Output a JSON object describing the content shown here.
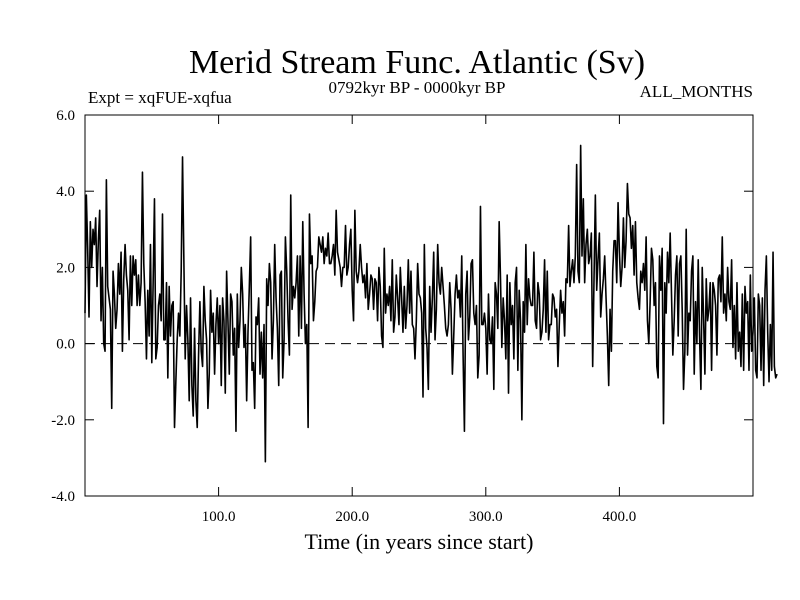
{
  "chart_data": {
    "type": "line",
    "title": "Merid Stream Func. Atlantic (Sv)",
    "subtitle_left": "Expt = xqFUE-xqfua",
    "subtitle_center": "0792kyr BP - 0000kyr BP",
    "subtitle_right": "ALL_MONTHS",
    "xlabel": "Time (in years since start)",
    "ylabel": "",
    "xlim": [
      0,
      500
    ],
    "ylim": [
      -4.0,
      6.0
    ],
    "x_ticks": [
      100,
      200,
      300,
      400
    ],
    "x_tick_labels": [
      "100.0",
      "200.0",
      "300.0",
      "400.0"
    ],
    "y_ticks": [
      -4,
      -2,
      0,
      2,
      4,
      6
    ],
    "y_tick_labels": [
      "-4.0",
      "-2.0",
      "0.0",
      "2.0",
      "4.0",
      "6.0"
    ],
    "reference_line": {
      "y": 0.0,
      "style": "dashed"
    },
    "series": [
      {
        "name": "Merid Stream Func. Atlantic",
        "x_start": 0,
        "x_step": 1,
        "values": [
          0.8,
          3.9,
          2.5,
          0.7,
          3.2,
          2.0,
          3.0,
          2.6,
          3.3,
          1.5,
          2.7,
          3.5,
          0.6,
          2.0,
          0.0,
          -0.2,
          4.3,
          1.5,
          1.2,
          0.9,
          -1.7,
          1.9,
          1.3,
          0.4,
          0.9,
          2.1,
          1.3,
          2.4,
          -0.2,
          1.7,
          2.6,
          1.8,
          1.4,
          0.1,
          2.3,
          1.0,
          2.3,
          1.8,
          2.2,
          1.0,
          1.8,
          1.0,
          1.6,
          4.5,
          2.1,
          1.1,
          -0.4,
          1.4,
          0.2,
          2.6,
          -0.5,
          1.6,
          3.8,
          -0.4,
          -0.1,
          1.0,
          1.3,
          0.6,
          3.4,
          0.1,
          0.1,
          1.6,
          -0.9,
          1.5,
          0.2,
          1.0,
          1.1,
          -2.2,
          -1.0,
          0.1,
          0.8,
          0.2,
          1.9,
          4.9,
          2.2,
          -0.4,
          1.0,
          0.1,
          -1.5,
          1.2,
          -1.1,
          -1.9,
          0.4,
          -1.5,
          -2.2,
          -0.3,
          1.1,
          -0.2,
          -0.6,
          1.5,
          0.6,
          0.1,
          -1.7,
          -0.8,
          1.4,
          0.3,
          0.8,
          -0.8,
          0.5,
          1.2,
          0.0,
          1.0,
          -1.1,
          1.2,
          0.6,
          -1.3,
          1.9,
          0.6,
          -0.8,
          1.3,
          1.1,
          -0.3,
          0.4,
          -2.3,
          1.3,
          -0.1,
          0.6,
          2.0,
          1.3,
          -0.1,
          0.5,
          -1.5,
          0.3,
          1.5,
          2.8,
          -0.7,
          -0.5,
          -1.7,
          0.7,
          0.5,
          1.2,
          -0.8,
          0.3,
          -0.9,
          0.5,
          -3.1,
          1.7,
          1.0,
          2.1,
          1.6,
          -0.4,
          0.6,
          2.6,
          1.2,
          0.4,
          -1.1,
          1.8,
          1.9,
          -0.9,
          0.1,
          2.8,
          1.9,
          0.6,
          -0.3,
          3.9,
          0.9,
          1.5,
          1.2,
          1.6,
          2.3,
          0.2,
          2.3,
          0.4,
          3.2,
          1.3,
          0.0,
          0.5,
          -2.2,
          3.4,
          2.1,
          2.3,
          0.6,
          1.1,
          1.9,
          2.0,
          2.8,
          2.6,
          2.4,
          2.8,
          2.1,
          2.5,
          2.3,
          2.9,
          2.1,
          2.1,
          2.3,
          2.6,
          1.8,
          3.5,
          2.4,
          2.2,
          2.0,
          1.5,
          2.0,
          2.0,
          3.1,
          1.8,
          2.0,
          2.6,
          3.0,
          1.4,
          0.6,
          3.5,
          1.9,
          1.6,
          1.9,
          2.6,
          2.0,
          1.6,
          1.8,
          1.2,
          2.1,
          0.9,
          1.3,
          1.8,
          1.7,
          0.9,
          1.7,
          1.6,
          0.6,
          2.0,
          1.5,
          0.2,
          -0.1,
          2.5,
          0.8,
          1.3,
          1.0,
          1.5,
          0.6,
          2.2,
          0.3,
          0.7,
          1.8,
          1.2,
          0.5,
          2.0,
          1.2,
          0.3,
          1.5,
          0.4,
          1.0,
          2.2,
          0.8,
          1.9,
          0.5,
          0.4,
          -0.4,
          0.6,
          2.1,
          1.3,
          1.2,
          0.8,
          -1.4,
          2.6,
          0.4,
          -0.1,
          -1.2,
          1.5,
          0.3,
          1.2,
          2.4,
          0.1,
          0.9,
          2.6,
          1.6,
          1.3,
          2.0,
          1.5,
          1.0,
          0.4,
          0.2,
          0.5,
          1.6,
          0.9,
          -0.8,
          0.2,
          1.3,
          1.8,
          1.2,
          1.4,
          0.7,
          2.3,
          -0.3,
          -2.3,
          1.3,
          1.9,
          0.1,
          0.7,
          2.1,
          2.2,
          0.8,
          0.5,
          1.0,
          -0.9,
          -0.3,
          3.6,
          0.5,
          0.5,
          0.8,
          0.4,
          -0.8,
          1.3,
          0.1,
          0.0,
          0.7,
          -1.2,
          1.6,
          1.3,
          0.4,
          3.2,
          1.7,
          -0.1,
          1.2,
          0.6,
          -0.4,
          1.8,
          -1.3,
          1.6,
          0.5,
          1.0,
          -0.4,
          1.6,
          2.0,
          -0.7,
          1.4,
          0.6,
          -2.0,
          1.1,
          0.3,
          2.6,
          0.5,
          1.7,
          1.2,
          1.0,
          1.0,
          2.4,
          0.6,
          0.4,
          1.6,
          1.3,
          0.1,
          0.3,
          0.9,
          2.2,
          0.3,
          1.9,
          0.1,
          0.5,
          0.5,
          1.3,
          1.2,
          0.7,
          0.9,
          -0.6,
          0.5,
          1.4,
          0.8,
          1.1,
          0.2,
          1.7,
          1.6,
          3.1,
          1.5,
          1.9,
          2.2,
          1.6,
          2.3,
          4.7,
          1.9,
          1.6,
          5.2,
          2.3,
          3.8,
          1.6,
          2.6,
          3.0,
          2.1,
          2.3,
          2.9,
          -0.6,
          1.7,
          3.9,
          1.4,
          2.2,
          2.9,
          0.7,
          1.3,
          1.7,
          2.3,
          1.2,
          0.2,
          -1.1,
          0.9,
          -0.2,
          1.9,
          2.7,
          2.7,
          1.6,
          3.7,
          2.4,
          1.5,
          2.0,
          3.3,
          2.0,
          2.7,
          4.2,
          3.4,
          3.3,
          2.5,
          3.1,
          1.8,
          3.2,
          1.6,
          1.2,
          0.9,
          1.9,
          1.6,
          2.1,
          1.4,
          2.8,
          0.6,
          0.0,
          1.1,
          2.5,
          2.2,
          1.0,
          1.6,
          -0.6,
          -0.9,
          2.3,
          1.4,
          2.5,
          -2.1,
          1.6,
          0.8,
          2.4,
          1.6,
          2.9,
          1.3,
          -0.3,
          0.6,
          1.8,
          2.3,
          0.2,
          2.1,
          2.3,
          0.9,
          -1.2,
          -0.2,
          3.0,
          -0.3,
          0.8,
          0.6,
          1.9,
          2.3,
          -0.8,
          1.1,
          0.0,
          2.2,
          0.2,
          -1.2,
          2.0,
          0.7,
          -0.8,
          1.7,
          0.6,
          0.9,
          1.6,
          -0.7,
          1.6,
          1.4,
          1.0,
          -0.3,
          1.7,
          1.8,
          1.1,
          2.8,
          0.8,
          1.3,
          0.6,
          2.0,
          1.1,
          0.9,
          2.2,
          -0.1,
          1.0,
          -0.4,
          1.6,
          -0.2,
          0.3,
          -0.6,
          1.3,
          -0.7,
          1.5,
          0.8,
          1.1,
          -0.7,
          1.8,
          -0.2,
          0.3,
          1.2,
          -0.7,
          -0.9,
          1.3,
          1.0,
          -0.7,
          1.2,
          -1.1,
          1.4,
          2.3,
          0.3,
          -1.0,
          0.5,
          -0.7,
          2.4,
          -0.6,
          -0.9,
          -0.8
        ]
      }
    ]
  }
}
